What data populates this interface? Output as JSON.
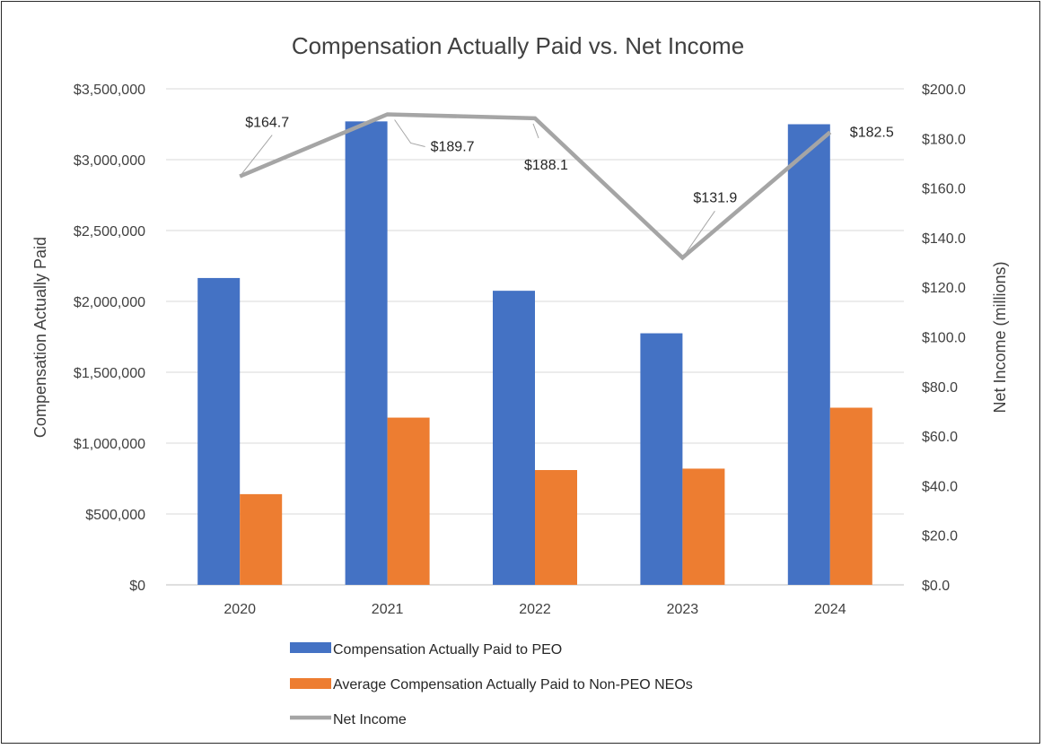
{
  "chart_data": {
    "type": "bar",
    "title": "Compensation Actually Paid vs. Net Income",
    "categories": [
      "2020",
      "2021",
      "2022",
      "2023",
      "2024"
    ],
    "series": [
      {
        "name": "Compensation Actually Paid to PEO",
        "type": "bar",
        "axis": "left",
        "color": "#4472C4",
        "values": [
          2165000,
          3270000,
          2075000,
          1775000,
          3250000
        ]
      },
      {
        "name": "Average Compensation Actually Paid to Non-PEO NEOs",
        "type": "bar",
        "axis": "left",
        "color": "#ED7D31",
        "values": [
          640000,
          1180000,
          810000,
          820000,
          1250000
        ]
      },
      {
        "name": "Net Income",
        "type": "line",
        "axis": "right",
        "color": "#A5A5A5",
        "values": [
          164.7,
          189.7,
          188.1,
          131.9,
          182.5
        ],
        "data_labels": [
          "$164.7",
          "$189.7",
          "$188.1",
          "$131.9",
          "$182.5"
        ]
      }
    ],
    "ylabel": "Compensation Actually Paid",
    "y2label": "Net Income (millions)",
    "ylim": [
      0,
      3500000
    ],
    "y2lim": [
      0,
      200
    ],
    "y_ticks": [
      "$0",
      "$500,000",
      "$1,000,000",
      "$1,500,000",
      "$2,000,000",
      "$2,500,000",
      "$3,000,000",
      "$3,500,000"
    ],
    "y2_ticks": [
      "$0.0",
      "$20.0",
      "$40.0",
      "$60.0",
      "$80.0",
      "$100.0",
      "$120.0",
      "$140.0",
      "$160.0",
      "$180.0",
      "$200.0"
    ],
    "grid": true,
    "legend_position": "bottom"
  }
}
